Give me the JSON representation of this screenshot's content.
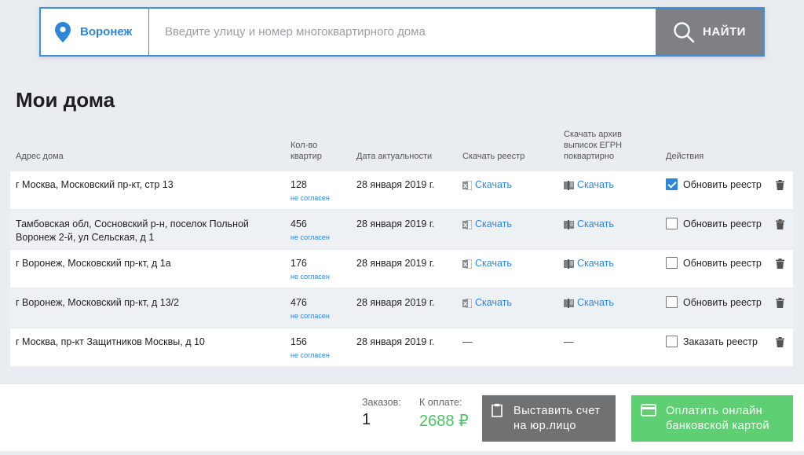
{
  "search": {
    "city": "Воронеж",
    "placeholder": "Введите улицу и номер многоквартирного дома",
    "value": "",
    "button_label": "НАЙТИ"
  },
  "page_title": "Мои дома",
  "table": {
    "headers": {
      "address": "Адрес дома",
      "flats_line1": "Кол-во",
      "flats_line2": "квартир",
      "date": "Дата актуальности",
      "registry": "Скачать реестр",
      "archive_line1": "Скачать архив",
      "archive_line2": "выписок ЕГРН",
      "archive_line3": "поквартирно",
      "actions": "Действия"
    },
    "rows": [
      {
        "address": "г Москва, Московский пр-кт, стр 13",
        "flats": "128",
        "flats_note": "не согласен",
        "date": "28 января 2019 г.",
        "registry": "Скачать",
        "archive": "Скачать",
        "action": "Обновить реестр",
        "checked": true
      },
      {
        "address": "Тамбовская обл, Сосновский р-н, поселок Польной Воронеж 2-й, ул Сельская, д 1",
        "flats": "456",
        "flats_note": "не согласен",
        "date": "28 января 2019 г.",
        "registry": "Скачать",
        "archive": "Скачать",
        "action": "Обновить реестр",
        "checked": false
      },
      {
        "address": "г Воронеж, Московский пр-кт, д 1а",
        "flats": "176",
        "flats_note": "не согласен",
        "date": "28 января 2019 г.",
        "registry": "Скачать",
        "archive": "Скачать",
        "action": "Обновить реестр",
        "checked": false
      },
      {
        "address": "г Воронеж, Московский пр-кт, д 13/2",
        "flats": "476",
        "flats_note": "не согласен",
        "date": "28 января 2019 г.",
        "registry": "Скачать",
        "archive": "Скачать",
        "action": "Обновить реестр",
        "checked": false
      },
      {
        "address": "г Москва, пр-кт Защитников Москвы, д 10",
        "flats": "156",
        "flats_note": "не согласен",
        "date": "28 января 2019 г.",
        "registry": "—",
        "archive": "—",
        "action": "Заказать реестр",
        "checked": false
      }
    ]
  },
  "footer": {
    "orders_label": "Заказов:",
    "orders_value": "1",
    "pay_label": "К оплате:",
    "pay_value": "2688 ₽",
    "invoice_line1": "Выставить счет",
    "invoice_line2": "на юр.лицо",
    "card_line1": "Оплатить онлайн",
    "card_line2": "банковской картой"
  },
  "icons": {
    "location": "pin-icon",
    "search": "magnifier-icon",
    "excel": "xls-icon",
    "archive": "book-icon",
    "delete": "trash-icon",
    "invoice": "clipboard-icon",
    "card": "card-icon"
  },
  "colors": {
    "accent": "#2f86d8",
    "green": "#5fcf74",
    "price": "#4cc264",
    "grey_button": "#6f7173"
  }
}
